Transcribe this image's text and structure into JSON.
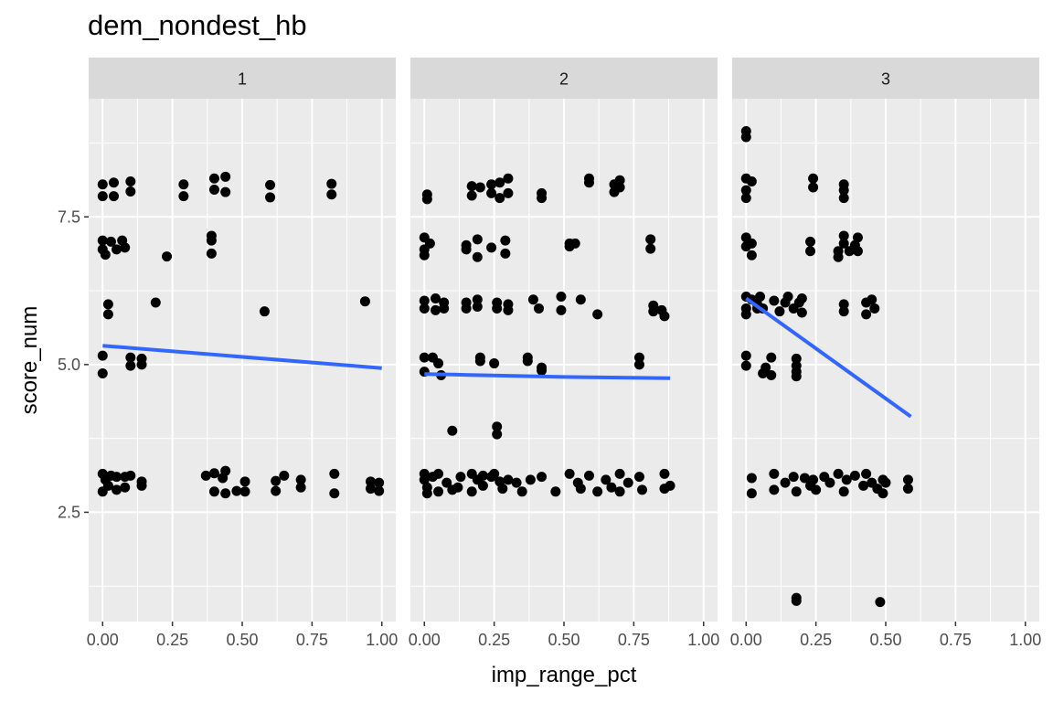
{
  "chart_data": {
    "type": "scatter",
    "title": "dem_nondest_hb",
    "xlabel": "imp_range_pct",
    "ylabel": "score_num",
    "xlim": [
      -0.05,
      1.05
    ],
    "ylim": [
      0.65,
      9.5
    ],
    "x_ticks": [
      "0.00",
      "0.25",
      "0.50",
      "0.75",
      "1.00"
    ],
    "y_ticks": [
      "2.5",
      "5.0",
      "7.5"
    ],
    "colors": {
      "point": "#000000",
      "trend": "#3366FF",
      "panel_bg": "#EBEBEB",
      "strip_bg": "#D9D9D9",
      "grid": "#FFFFFF"
    },
    "panels": [
      {
        "label": "1",
        "trend": {
          "x": [
            0.0,
            1.0
          ],
          "y": [
            5.32,
            4.94
          ]
        },
        "points": [
          [
            0.0,
            8.05
          ],
          [
            0.0,
            7.85
          ],
          [
            0.04,
            8.08
          ],
          [
            0.04,
            7.85
          ],
          [
            0.1,
            8.1
          ],
          [
            0.1,
            7.93
          ],
          [
            0.29,
            8.05
          ],
          [
            0.29,
            7.85
          ],
          [
            0.4,
            8.15
          ],
          [
            0.4,
            7.96
          ],
          [
            0.44,
            8.18
          ],
          [
            0.44,
            7.92
          ],
          [
            0.6,
            8.04
          ],
          [
            0.6,
            7.83
          ],
          [
            0.82,
            8.06
          ],
          [
            0.82,
            7.88
          ],
          [
            0.0,
            7.1
          ],
          [
            0.0,
            6.95
          ],
          [
            0.01,
            6.86
          ],
          [
            0.03,
            7.08
          ],
          [
            0.05,
            6.95
          ],
          [
            0.07,
            7.1
          ],
          [
            0.08,
            6.98
          ],
          [
            0.23,
            6.83
          ],
          [
            0.39,
            7.18
          ],
          [
            0.39,
            7.1
          ],
          [
            0.39,
            6.88
          ],
          [
            0.02,
            6.02
          ],
          [
            0.02,
            5.85
          ],
          [
            0.19,
            6.05
          ],
          [
            0.58,
            5.9
          ],
          [
            0.94,
            6.07
          ],
          [
            0.0,
            5.15
          ],
          [
            0.0,
            4.85
          ],
          [
            0.1,
            5.12
          ],
          [
            0.1,
            4.98
          ],
          [
            0.14,
            5.1
          ],
          [
            0.14,
            5.0
          ],
          [
            0.0,
            3.15
          ],
          [
            0.0,
            2.85
          ],
          [
            0.01,
            3.05
          ],
          [
            0.02,
            2.95
          ],
          [
            0.03,
            3.12
          ],
          [
            0.05,
            3.1
          ],
          [
            0.05,
            2.88
          ],
          [
            0.08,
            3.1
          ],
          [
            0.08,
            2.92
          ],
          [
            0.1,
            3.12
          ],
          [
            0.14,
            3.02
          ],
          [
            0.14,
            2.95
          ],
          [
            0.37,
            3.12
          ],
          [
            0.4,
            3.16
          ],
          [
            0.4,
            2.85
          ],
          [
            0.43,
            3.08
          ],
          [
            0.44,
            3.2
          ],
          [
            0.44,
            2.82
          ],
          [
            0.48,
            2.86
          ],
          [
            0.51,
            2.85
          ],
          [
            0.51,
            3.02
          ],
          [
            0.62,
            3.03
          ],
          [
            0.62,
            2.86
          ],
          [
            0.65,
            3.12
          ],
          [
            0.71,
            3.05
          ],
          [
            0.71,
            2.92
          ],
          [
            0.83,
            3.15
          ],
          [
            0.83,
            2.82
          ],
          [
            0.96,
            3.02
          ],
          [
            0.96,
            2.9
          ],
          [
            0.99,
            3.0
          ],
          [
            0.99,
            2.86
          ]
        ]
      },
      {
        "label": "2",
        "trend": {
          "x": [
            0.0,
            0.1,
            0.3,
            0.5,
            0.7,
            0.88
          ],
          "y": [
            4.84,
            4.83,
            4.81,
            4.79,
            4.78,
            4.77
          ]
        },
        "points": [
          [
            0.01,
            7.88
          ],
          [
            0.01,
            7.8
          ],
          [
            0.17,
            8.02
          ],
          [
            0.17,
            7.86
          ],
          [
            0.2,
            8.0
          ],
          [
            0.24,
            8.05
          ],
          [
            0.24,
            7.9
          ],
          [
            0.27,
            8.08
          ],
          [
            0.27,
            7.82
          ],
          [
            0.3,
            8.15
          ],
          [
            0.3,
            7.9
          ],
          [
            0.42,
            7.9
          ],
          [
            0.42,
            7.82
          ],
          [
            0.59,
            8.15
          ],
          [
            0.59,
            8.08
          ],
          [
            0.68,
            8.05
          ],
          [
            0.68,
            7.92
          ],
          [
            0.7,
            8.12
          ],
          [
            0.7,
            8.0
          ],
          [
            0.0,
            7.15
          ],
          [
            0.0,
            6.95
          ],
          [
            0.0,
            6.85
          ],
          [
            0.02,
            7.05
          ],
          [
            0.15,
            7.02
          ],
          [
            0.15,
            6.95
          ],
          [
            0.19,
            7.12
          ],
          [
            0.19,
            6.82
          ],
          [
            0.24,
            6.98
          ],
          [
            0.29,
            7.1
          ],
          [
            0.29,
            6.88
          ],
          [
            0.52,
            7.05
          ],
          [
            0.52,
            7.0
          ],
          [
            0.54,
            7.05
          ],
          [
            0.81,
            7.12
          ],
          [
            0.81,
            6.96
          ],
          [
            0.0,
            6.08
          ],
          [
            0.0,
            5.95
          ],
          [
            0.04,
            6.12
          ],
          [
            0.04,
            5.92
          ],
          [
            0.07,
            6.05
          ],
          [
            0.07,
            5.95
          ],
          [
            0.15,
            6.05
          ],
          [
            0.15,
            5.95
          ],
          [
            0.19,
            6.1
          ],
          [
            0.19,
            5.98
          ],
          [
            0.26,
            6.05
          ],
          [
            0.26,
            5.95
          ],
          [
            0.3,
            6.02
          ],
          [
            0.3,
            5.92
          ],
          [
            0.39,
            6.1
          ],
          [
            0.41,
            5.95
          ],
          [
            0.49,
            6.15
          ],
          [
            0.49,
            5.92
          ],
          [
            0.56,
            6.1
          ],
          [
            0.62,
            5.85
          ],
          [
            0.82,
            6.0
          ],
          [
            0.82,
            5.9
          ],
          [
            0.85,
            5.92
          ],
          [
            0.86,
            5.82
          ],
          [
            0.0,
            5.12
          ],
          [
            0.0,
            4.88
          ],
          [
            0.03,
            5.12
          ],
          [
            0.05,
            5.02
          ],
          [
            0.06,
            4.82
          ],
          [
            0.2,
            5.12
          ],
          [
            0.2,
            5.06
          ],
          [
            0.25,
            5.02
          ],
          [
            0.37,
            5.12
          ],
          [
            0.37,
            5.06
          ],
          [
            0.42,
            4.95
          ],
          [
            0.42,
            4.9
          ],
          [
            0.77,
            5.12
          ],
          [
            0.77,
            5.0
          ],
          [
            0.1,
            3.88
          ],
          [
            0.26,
            3.95
          ],
          [
            0.26,
            3.82
          ],
          [
            0.0,
            3.15
          ],
          [
            0.0,
            3.05
          ],
          [
            0.01,
            2.92
          ],
          [
            0.01,
            2.82
          ],
          [
            0.03,
            3.1
          ],
          [
            0.05,
            3.15
          ],
          [
            0.05,
            2.85
          ],
          [
            0.08,
            3.0
          ],
          [
            0.1,
            2.88
          ],
          [
            0.12,
            2.92
          ],
          [
            0.13,
            3.1
          ],
          [
            0.17,
            3.15
          ],
          [
            0.17,
            2.85
          ],
          [
            0.19,
            3.05
          ],
          [
            0.21,
            3.12
          ],
          [
            0.21,
            2.95
          ],
          [
            0.24,
            3.1
          ],
          [
            0.25,
            3.15
          ],
          [
            0.27,
            3.02
          ],
          [
            0.28,
            2.9
          ],
          [
            0.3,
            3.05
          ],
          [
            0.33,
            3.0
          ],
          [
            0.35,
            2.85
          ],
          [
            0.38,
            3.05
          ],
          [
            0.42,
            3.1
          ],
          [
            0.47,
            2.85
          ],
          [
            0.52,
            3.15
          ],
          [
            0.55,
            3.0
          ],
          [
            0.56,
            2.9
          ],
          [
            0.59,
            3.12
          ],
          [
            0.62,
            2.85
          ],
          [
            0.65,
            3.05
          ],
          [
            0.67,
            2.92
          ],
          [
            0.7,
            3.15
          ],
          [
            0.7,
            2.85
          ],
          [
            0.73,
            3.0
          ],
          [
            0.77,
            3.1
          ],
          [
            0.78,
            2.88
          ],
          [
            0.86,
            3.15
          ],
          [
            0.86,
            2.9
          ],
          [
            0.88,
            2.95
          ]
        ]
      },
      {
        "label": "3",
        "trend": {
          "x": [
            0.0,
            0.59
          ],
          "y": [
            6.12,
            4.12
          ]
        },
        "points": [
          [
            0.0,
            8.95
          ],
          [
            0.0,
            8.85
          ],
          [
            0.0,
            8.15
          ],
          [
            0.0,
            7.95
          ],
          [
            0.0,
            7.82
          ],
          [
            0.02,
            8.1
          ],
          [
            0.24,
            8.15
          ],
          [
            0.24,
            8.0
          ],
          [
            0.35,
            8.05
          ],
          [
            0.35,
            7.95
          ],
          [
            0.35,
            7.82
          ],
          [
            0.0,
            7.15
          ],
          [
            0.0,
            7.0
          ],
          [
            0.02,
            7.05
          ],
          [
            0.02,
            6.85
          ],
          [
            0.23,
            7.08
          ],
          [
            0.23,
            6.92
          ],
          [
            0.33,
            6.92
          ],
          [
            0.33,
            6.82
          ],
          [
            0.35,
            7.18
          ],
          [
            0.35,
            7.05
          ],
          [
            0.37,
            6.92
          ],
          [
            0.39,
            7.02
          ],
          [
            0.4,
            6.92
          ],
          [
            0.4,
            7.15
          ],
          [
            0.0,
            6.15
          ],
          [
            0.0,
            5.95
          ],
          [
            0.0,
            5.85
          ],
          [
            0.02,
            6.1
          ],
          [
            0.04,
            5.95
          ],
          [
            0.04,
            6.02
          ],
          [
            0.05,
            6.15
          ],
          [
            0.06,
            5.95
          ],
          [
            0.1,
            6.08
          ],
          [
            0.12,
            5.9
          ],
          [
            0.14,
            6.05
          ],
          [
            0.15,
            6.15
          ],
          [
            0.17,
            5.95
          ],
          [
            0.19,
            6.05
          ],
          [
            0.2,
            6.12
          ],
          [
            0.2,
            5.88
          ],
          [
            0.35,
            6.02
          ],
          [
            0.35,
            5.9
          ],
          [
            0.43,
            6.05
          ],
          [
            0.43,
            5.85
          ],
          [
            0.45,
            6.1
          ],
          [
            0.46,
            5.95
          ],
          [
            0.0,
            5.15
          ],
          [
            0.0,
            4.98
          ],
          [
            0.06,
            4.85
          ],
          [
            0.07,
            4.95
          ],
          [
            0.09,
            5.12
          ],
          [
            0.09,
            4.82
          ],
          [
            0.18,
            5.1
          ],
          [
            0.18,
            4.98
          ],
          [
            0.18,
            4.88
          ],
          [
            0.18,
            4.8
          ],
          [
            0.02,
            3.08
          ],
          [
            0.02,
            2.82
          ],
          [
            0.1,
            3.15
          ],
          [
            0.1,
            2.88
          ],
          [
            0.14,
            3.0
          ],
          [
            0.17,
            3.1
          ],
          [
            0.18,
            2.85
          ],
          [
            0.21,
            3.08
          ],
          [
            0.23,
            2.95
          ],
          [
            0.24,
            3.05
          ],
          [
            0.25,
            2.88
          ],
          [
            0.28,
            3.1
          ],
          [
            0.3,
            3.0
          ],
          [
            0.33,
            3.15
          ],
          [
            0.35,
            2.85
          ],
          [
            0.36,
            3.05
          ],
          [
            0.39,
            3.12
          ],
          [
            0.42,
            2.95
          ],
          [
            0.43,
            3.15
          ],
          [
            0.45,
            3.0
          ],
          [
            0.47,
            2.9
          ],
          [
            0.49,
            3.05
          ],
          [
            0.49,
            2.82
          ],
          [
            0.5,
            3.0
          ],
          [
            0.58,
            3.05
          ],
          [
            0.58,
            2.9
          ],
          [
            0.18,
            1.05
          ],
          [
            0.18,
            1.0
          ],
          [
            0.48,
            0.98
          ]
        ]
      }
    ]
  }
}
